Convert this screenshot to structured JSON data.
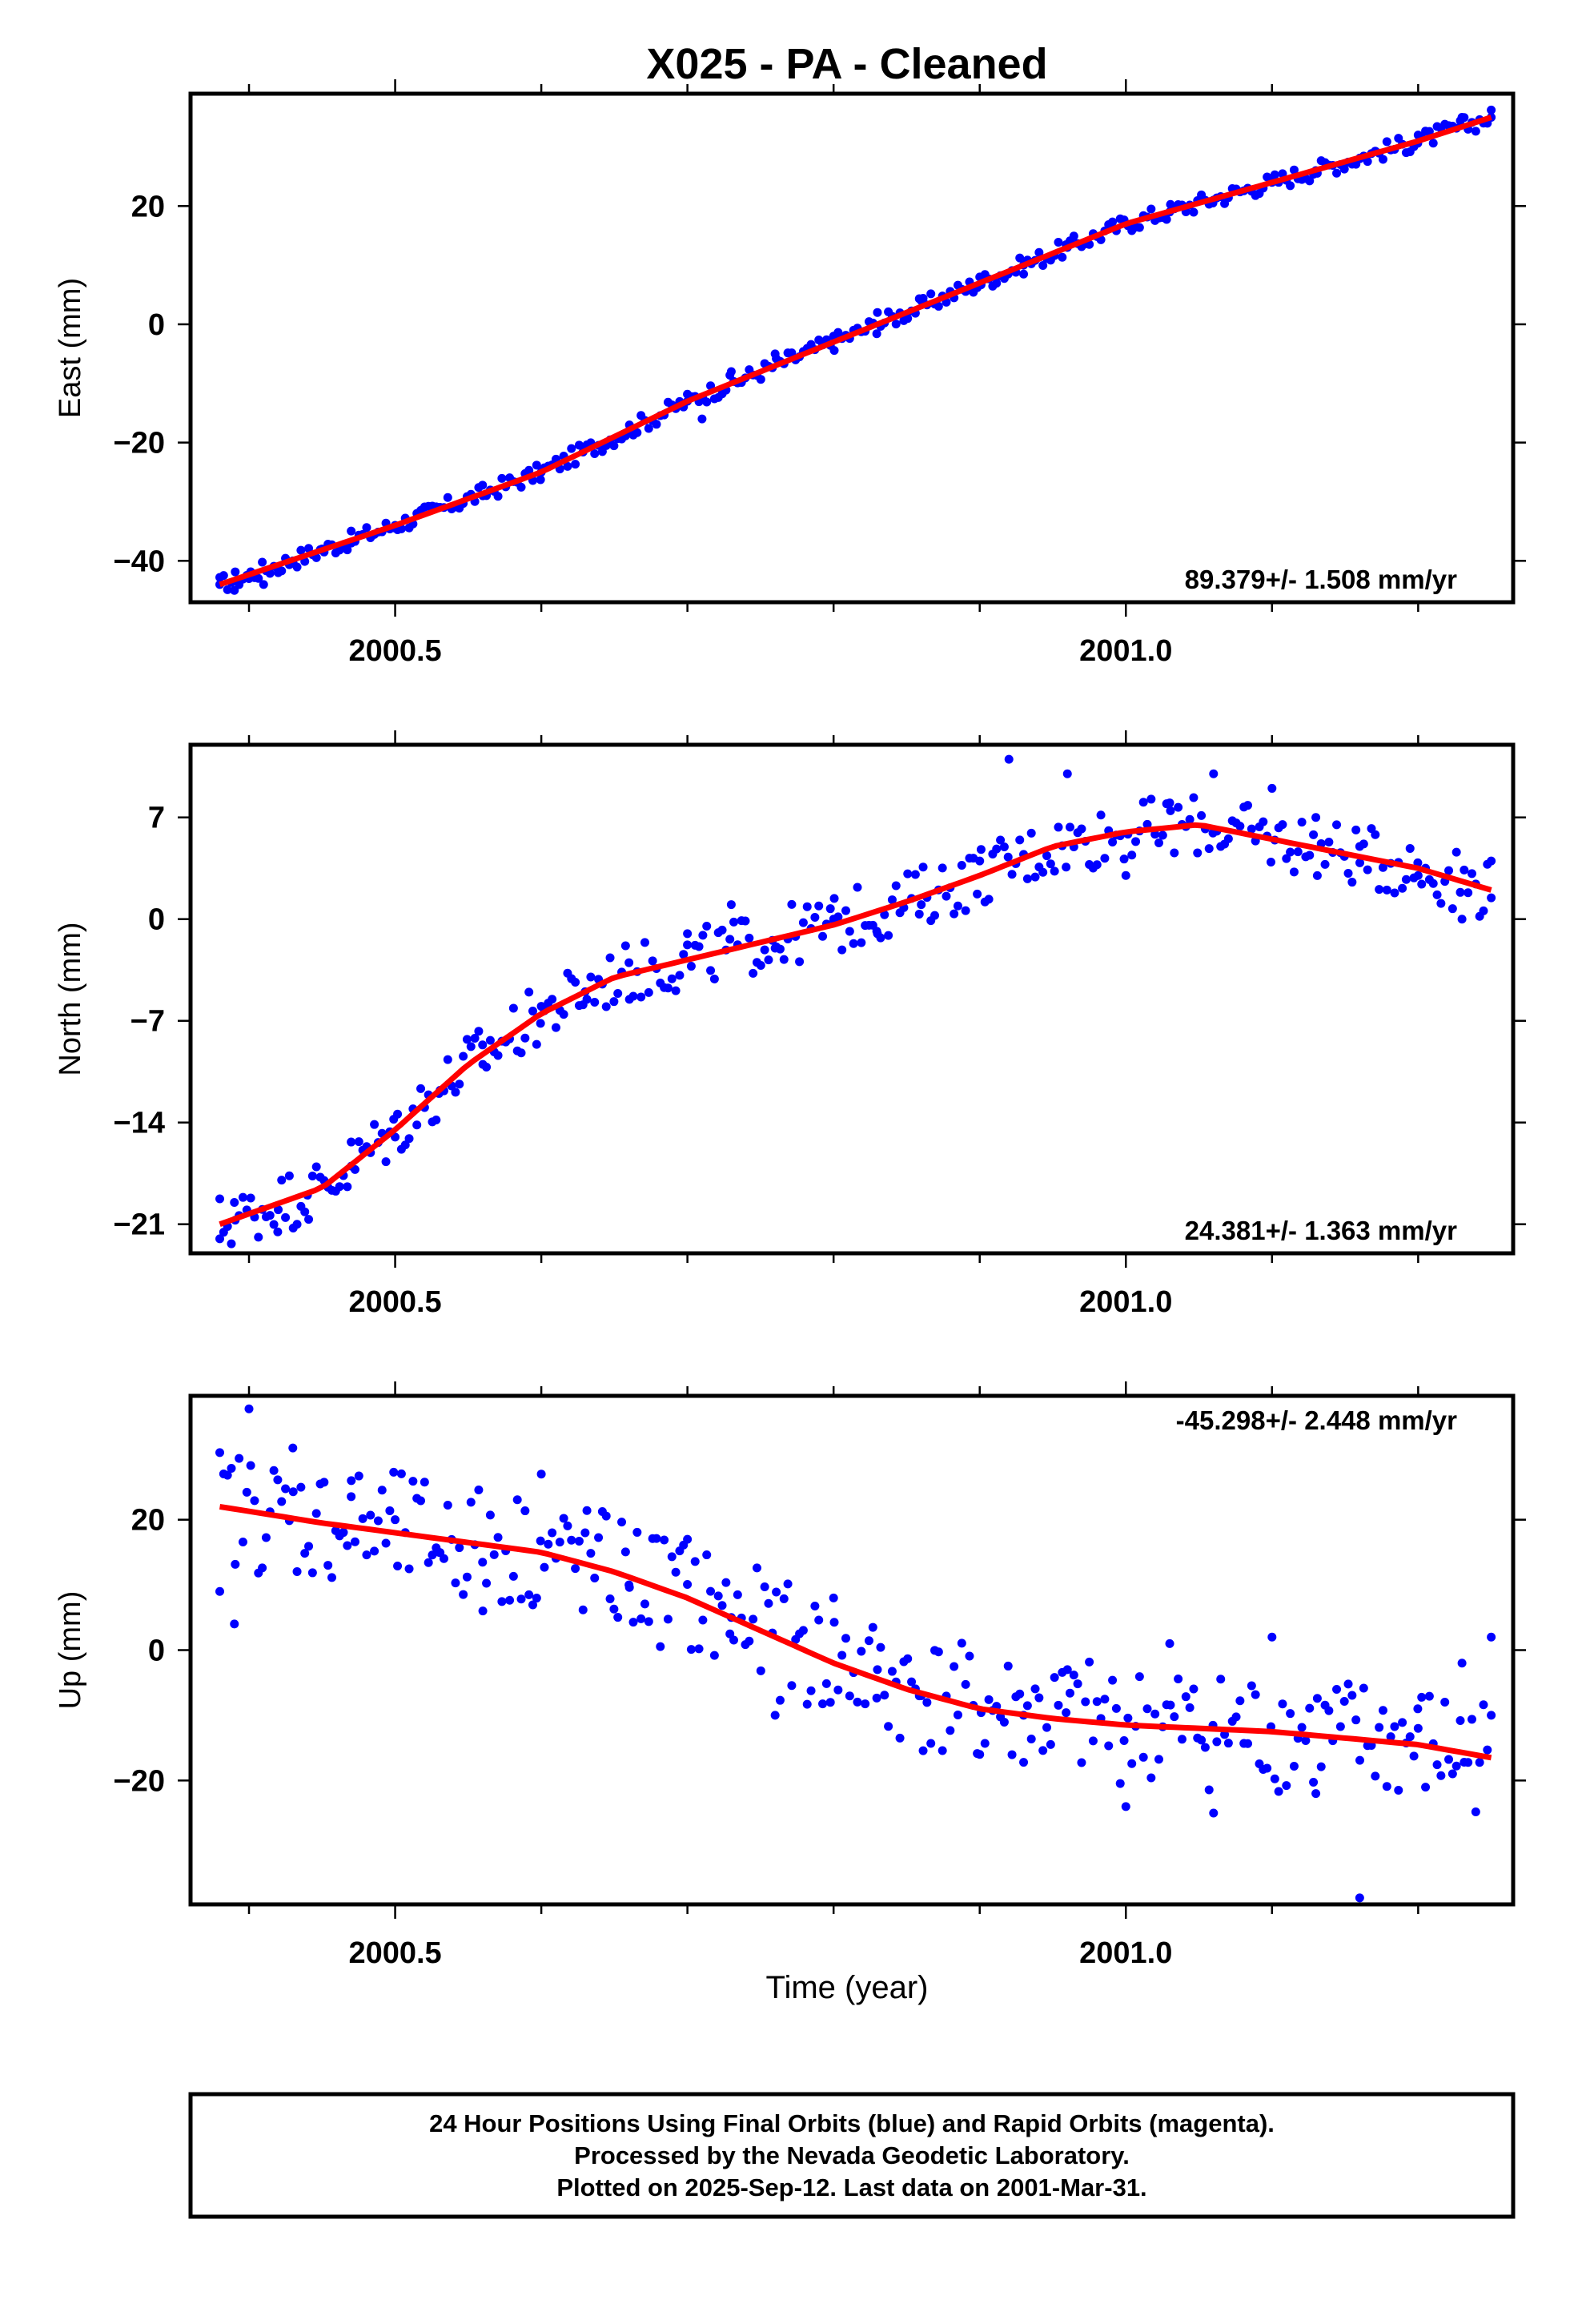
{
  "title": "X025  - PA - Cleaned",
  "xlabel": "Time (year)",
  "footer": {
    "line1": "24 Hour Positions Using Final Orbits (blue) and Rapid Orbits (magenta).",
    "line2": "Processed by the Nevada Geodetic Laboratory.",
    "line3": "Plotted on 2025-Sep-12. Last data on 2001-Mar-31."
  },
  "colors": {
    "points": "#0000ff",
    "fit": "#ff0000",
    "frame": "#000000"
  },
  "chart_data": [
    {
      "type": "scatter",
      "ylabel": "East (mm)",
      "rate": "89.379+/- 1.508 mm/yr",
      "xlim": [
        2000.36,
        2001.265
      ],
      "ylim": [
        -47,
        39
      ],
      "yticks": [
        -40,
        -20,
        0,
        20
      ],
      "ytick_labels": [
        "−40",
        "−20",
        "0",
        "20"
      ],
      "xtick_labels": {
        "2000.5": "2000.5",
        "2001": "2001.0"
      },
      "fit": {
        "x": [
          2000.38,
          2000.5,
          2000.6,
          2000.7,
          2000.8,
          2000.9,
          2001.0,
          2001.1,
          2001.2,
          2001.25
        ],
        "y": [
          -44,
          -34,
          -25,
          -13,
          -3,
          7,
          17,
          24,
          31,
          35
        ]
      },
      "points": {
        "x": [
          2000.38,
          2000.39,
          2000.4,
          2000.41,
          2000.42,
          2000.43,
          2000.45,
          2000.47,
          2000.5,
          2000.53,
          2000.56,
          2000.6,
          2000.63,
          2000.66,
          2000.7,
          2000.71,
          2000.73,
          2000.76,
          2000.8,
          2000.83,
          2000.86,
          2000.9,
          2000.93,
          2000.96,
          2001.0,
          2001.03,
          2001.06,
          2001.1,
          2001.13,
          2001.16,
          2001.2,
          2001.23,
          2001.25
        ],
        "y": [
          -44,
          -45,
          -43,
          -44,
          -42,
          -40,
          -38,
          -37,
          -34,
          -31,
          -29,
          -25,
          -21,
          -18,
          -13,
          -16,
          -8,
          -5,
          -2,
          2,
          4,
          8,
          10,
          13,
          17,
          19,
          21,
          24,
          26,
          28,
          32,
          35,
          35
        ]
      }
    },
    {
      "type": "scatter",
      "ylabel": "North (mm)",
      "rate": "24.381+/- 1.363 mm/yr",
      "xlim": [
        2000.36,
        2001.265
      ],
      "ylim": [
        -23,
        12
      ],
      "yticks": [
        -21,
        -14,
        -7,
        0,
        7
      ],
      "ytick_labels": [
        "−21",
        "−14",
        "−7",
        "0",
        "7"
      ],
      "xtick_labels": {
        "2000.5": "2000.5",
        "2001": "2001.0"
      },
      "fit": {
        "x": [
          2000.38,
          2000.45,
          2000.5,
          2000.55,
          2000.6,
          2000.65,
          2000.7,
          2000.75,
          2000.8,
          2000.85,
          2000.9,
          2000.95,
          2001.0,
          2001.05,
          2001.1,
          2001.15,
          2001.2,
          2001.25
        ],
        "y": [
          -21,
          -18.5,
          -14.5,
          -10,
          -6.5,
          -4,
          -2.8,
          -1.6,
          -0.4,
          1.2,
          3,
          5,
          6,
          6.5,
          5.5,
          4.5,
          3.5,
          2
        ]
      },
      "points": {
        "x": [
          2000.38,
          2000.39,
          2000.42,
          2000.44,
          2000.47,
          2000.5,
          2000.53,
          2000.56,
          2000.6,
          2000.63,
          2000.66,
          2000.7,
          2000.73,
          2000.76,
          2000.8,
          2000.83,
          2000.86,
          2000.9,
          2000.92,
          2000.96,
          2001.0,
          2001.03,
          2001.06,
          2001.1,
          2001.13,
          2001.16,
          2001.2,
          2001.23,
          2001.25
        ],
        "y": [
          -22,
          -19.5,
          -20,
          -19,
          -17,
          -15,
          -12,
          -10,
          -6,
          -5,
          -3,
          -1,
          1,
          -2,
          0,
          -1,
          1,
          4,
          11,
          10,
          3,
          8,
          10,
          9,
          7,
          5,
          3,
          0,
          4
        ]
      }
    },
    {
      "type": "scatter",
      "ylabel": "Up (mm)",
      "rate": "-45.298+/- 2.448 mm/yr",
      "xlim": [
        2000.36,
        2001.265
      ],
      "ylim": [
        -39,
        39
      ],
      "yticks": [
        -20,
        0,
        20
      ],
      "ytick_labels": [
        "−20",
        "0",
        "20"
      ],
      "xtick_labels": {
        "2000.5": "2000.5",
        "2001": "2001.0"
      },
      "fit": {
        "x": [
          2000.38,
          2000.45,
          2000.5,
          2000.55,
          2000.6,
          2000.65,
          2000.7,
          2000.75,
          2000.8,
          2000.85,
          2000.9,
          2000.95,
          2001.0,
          2001.05,
          2001.1,
          2001.15,
          2001.2,
          2001.25
        ],
        "y": [
          22,
          19.5,
          18,
          16.5,
          15,
          12,
          8,
          3,
          -2,
          -6,
          -9,
          -10.5,
          -11.5,
          -12,
          -12.5,
          -13.5,
          -14.5,
          -16.5
        ]
      },
      "points": {
        "x": [
          2000.38,
          2000.39,
          2000.4,
          2000.43,
          2000.47,
          2000.5,
          2000.53,
          2000.56,
          2000.6,
          2000.63,
          2000.66,
          2000.7,
          2000.73,
          2000.76,
          2000.8,
          2000.83,
          2000.86,
          2000.9,
          2000.93,
          2000.96,
          2001.0,
          2001.03,
          2001.06,
          2001.1,
          2001.13,
          2001.16,
          2001.2,
          2001.23,
          2001.25
        ],
        "y": [
          9,
          4,
          37,
          31,
          26,
          20,
          15,
          6,
          27,
          18,
          10,
          17,
          5,
          -10,
          8,
          -3,
          -7,
          -16,
          -10,
          -3,
          -24,
          1,
          -25,
          2,
          -22,
          -38,
          -12,
          -2,
          2
        ]
      }
    }
  ]
}
